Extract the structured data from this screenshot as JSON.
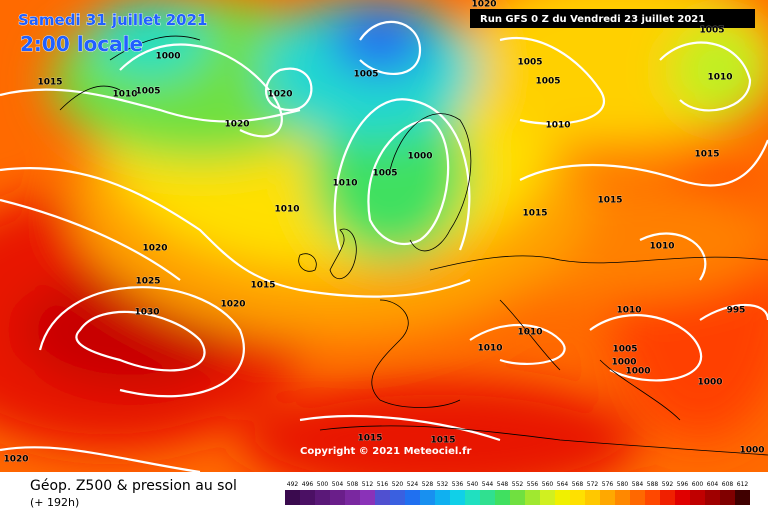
{
  "header": {
    "date": "Samedi 31 juillet 2021",
    "time": "2:00 locale",
    "run": "Run GFS 0 Z du Vendredi 23 juillet 2021"
  },
  "copyright": "Copyright © 2021 Meteociel.fr",
  "footer": {
    "title": "Géop. Z500 & pression au sol",
    "lead": "(+ 192h)"
  },
  "isobar_labels": [
    "1015",
    "1010",
    "1005",
    "1000",
    "1020",
    "1020",
    "1005",
    "1000",
    "1005",
    "1010",
    "1010",
    "1005",
    "1005",
    "1010",
    "1010",
    "1005",
    "1015",
    "1015",
    "1015",
    "1010",
    "1020",
    "1025",
    "1030",
    "1015",
    "1020",
    "1010",
    "1010",
    "1010",
    "995",
    "1005",
    "1000",
    "1000",
    "1000",
    "1000",
    "1015",
    "1015",
    "1020",
    "1020"
  ],
  "colorbar": {
    "values": [
      492,
      496,
      500,
      504,
      508,
      512,
      516,
      520,
      524,
      528,
      532,
      536,
      540,
      544,
      548,
      552,
      556,
      560,
      564,
      568,
      572,
      576,
      580,
      584,
      588,
      592,
      596,
      600,
      604,
      608,
      612
    ],
    "colors": [
      "#3a0a4e",
      "#4b1064",
      "#5a1878",
      "#6a1e8a",
      "#7a28a0",
      "#8a32b8",
      "#5050d0",
      "#3a60e0",
      "#2070f0",
      "#1890f0",
      "#10b0f0",
      "#10d0e8",
      "#20e0c0",
      "#30e090",
      "#40e060",
      "#70e040",
      "#a0e830",
      "#d0f020",
      "#f0f000",
      "#ffe000",
      "#ffc800",
      "#ffa800",
      "#ff8800",
      "#ff6800",
      "#ff4800",
      "#f02000",
      "#e00000",
      "#c00000",
      "#a00000",
      "#800000",
      "#400000"
    ]
  }
}
